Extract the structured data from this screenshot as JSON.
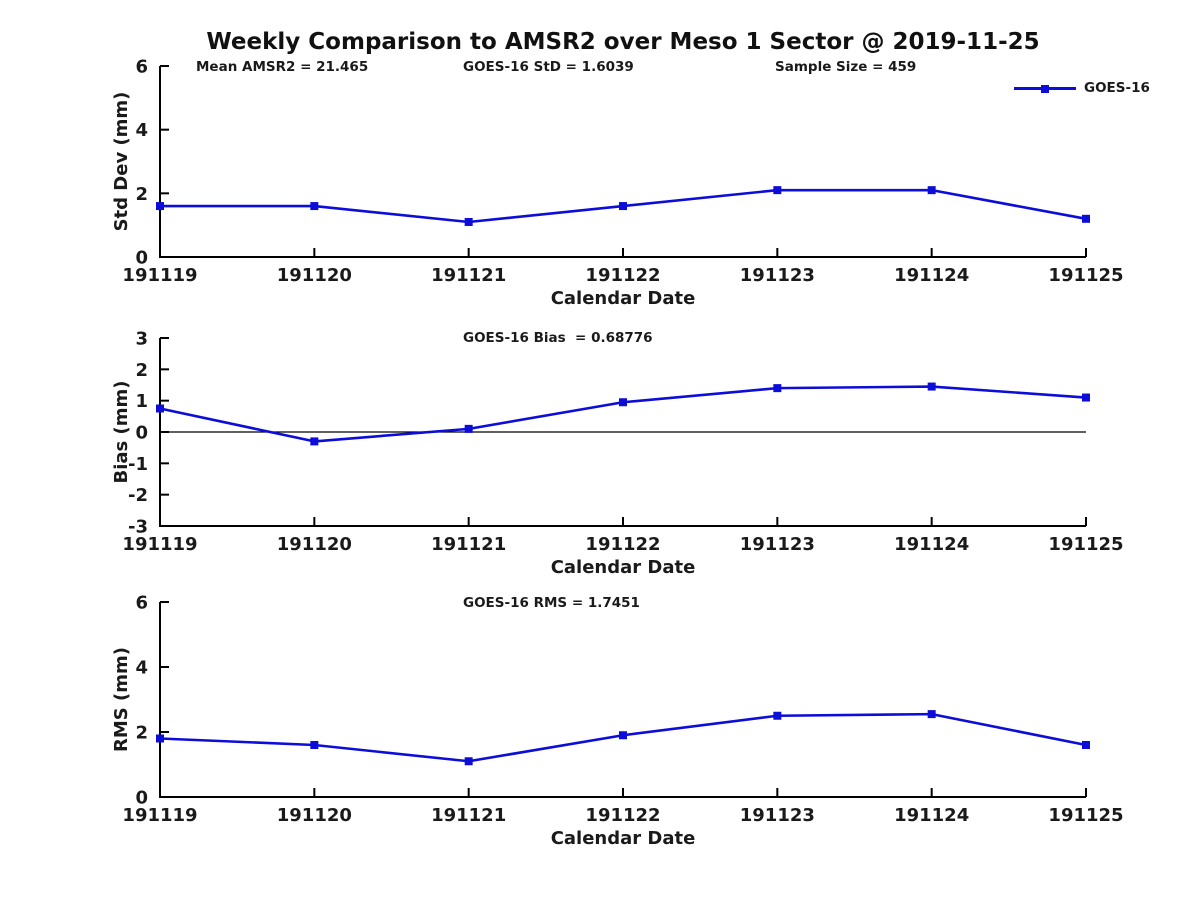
{
  "figure": {
    "title": "Weekly Comparison to AMSR2 over Meso 1 Sector @ 2019-11-25"
  },
  "legend": {
    "label": "GOES-16",
    "position": "top-right"
  },
  "colors": {
    "series_blue": "#0d0dd9",
    "text": "#1a1a1a",
    "axis": "#000000",
    "background": "#ffffff"
  },
  "chart_data": [
    {
      "type": "line",
      "panel": "std-dev",
      "annotations": [
        {
          "text": "Mean AMSR2 = 21.465"
        },
        {
          "text": "GOES-16 StD = 1.6039"
        },
        {
          "text": "Sample Size = 459"
        }
      ],
      "xlabel": "Calendar Date",
      "ylabel": "Std Dev (mm)",
      "categories": [
        "191119",
        "191120",
        "191121",
        "191122",
        "191123",
        "191124",
        "191125"
      ],
      "series": [
        {
          "name": "GOES-16",
          "values": [
            1.6,
            1.6,
            1.1,
            1.6,
            2.1,
            2.1,
            1.2
          ]
        }
      ],
      "ylim": [
        0,
        6
      ],
      "yticks": [
        0,
        2,
        4,
        6
      ],
      "grid": false,
      "marker": "square"
    },
    {
      "type": "line",
      "panel": "bias",
      "annotations": [
        {
          "text": "GOES-16 Bias  = 0.68776"
        }
      ],
      "xlabel": "Calendar Date",
      "ylabel": "Bias (mm)",
      "categories": [
        "191119",
        "191120",
        "191121",
        "191122",
        "191123",
        "191124",
        "191125"
      ],
      "series": [
        {
          "name": "GOES-16",
          "values": [
            0.75,
            -0.3,
            0.1,
            0.95,
            1.4,
            1.45,
            1.1
          ]
        }
      ],
      "ylim": [
        -3,
        3
      ],
      "yticks": [
        -3,
        -2,
        -1,
        0,
        1,
        2,
        3
      ],
      "zero_line": true,
      "grid": false,
      "marker": "square"
    },
    {
      "type": "line",
      "panel": "rms",
      "annotations": [
        {
          "text": "GOES-16 RMS = 1.7451"
        }
      ],
      "xlabel": "Calendar Date",
      "ylabel": "RMS (mm)",
      "categories": [
        "191119",
        "191120",
        "191121",
        "191122",
        "191123",
        "191124",
        "191125"
      ],
      "series": [
        {
          "name": "GOES-16",
          "values": [
            1.8,
            1.6,
            1.1,
            1.9,
            2.5,
            2.55,
            1.6
          ]
        }
      ],
      "ylim": [
        0,
        6
      ],
      "yticks": [
        0,
        2,
        4,
        6
      ],
      "grid": false,
      "marker": "square"
    }
  ]
}
